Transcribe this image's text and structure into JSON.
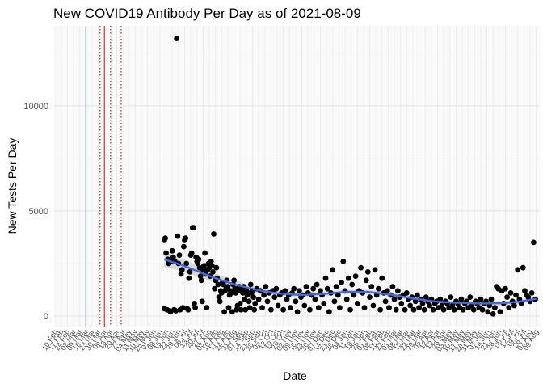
{
  "chart_data": {
    "type": "scatter",
    "title": "New COVID19 Antibody Per Day as of 2021-08-09",
    "xlabel": "Date",
    "ylabel": "New Tests Per Day",
    "ylim": [
      -500,
      13800
    ],
    "yticks": [
      0,
      5000,
      10000
    ],
    "xlim": [
      "2020-02-08",
      "2021-08-13"
    ],
    "x_tick_labels": [
      "10 Feb",
      "17 Feb",
      "24 Feb",
      "02 Mar",
      "09 Mar",
      "16 Mar",
      "23 Mar",
      "30 Mar",
      "06 Apr",
      "13 Apr",
      "20 Apr",
      "27 Apr",
      "04 May",
      "11 May",
      "18 May",
      "25 May",
      "01 Jun",
      "08 Jun",
      "15 Jun",
      "22 Jun",
      "29 Jun",
      "06 Jul",
      "13 Jul",
      "20 Jul",
      "27 Jul",
      "03 Aug",
      "10 Aug",
      "17 Aug",
      "24 Aug",
      "31 Aug",
      "07 Sep",
      "14 Sep",
      "21 Sep",
      "28 Sep",
      "05 Oct",
      "12 Oct",
      "19 Oct",
      "26 Oct",
      "02 Nov",
      "09 Nov",
      "16 Nov",
      "23 Nov",
      "30 Nov",
      "07 Dec",
      "14 Dec",
      "21 Dec",
      "28 Dec",
      "04 Jan",
      "11 Jan",
      "18 Jan",
      "25 Jan",
      "01 Feb",
      "08 Feb",
      "15 Feb",
      "22 Feb",
      "01 Mar",
      "08 Mar",
      "15 Mar",
      "22 Mar",
      "29 Mar",
      "05 Apr",
      "12 Apr",
      "19 Apr",
      "26 Apr",
      "03 May",
      "10 May",
      "17 May",
      "24 May",
      "31 May",
      "07 Jun",
      "14 Jun",
      "21 Jun",
      "28 Jun",
      "05 Jul",
      "12 Jul",
      "19 Jul",
      "26 Jul",
      "02 Aug",
      "09 Aug"
    ],
    "grid": true,
    "vlines": [
      {
        "date": "2020-03-16",
        "color": "#00008b",
        "style": "solid"
      },
      {
        "date": "2020-04-01",
        "color": "#8b0000",
        "style": "dotted"
      },
      {
        "date": "2020-04-06",
        "color": "#ff0000",
        "style": "solid"
      },
      {
        "date": "2020-04-13",
        "color": "#8b0000",
        "style": "dotted"
      },
      {
        "date": "2020-04-25",
        "color": "#8b0000",
        "style": "dotted"
      }
    ],
    "point_color": "#000000",
    "smooth_color": "#4169e1",
    "band_color": "#bfbfbf",
    "smooth": [
      {
        "x": "2020-06-13",
        "y": 2700
      },
      {
        "x": "2020-07-01",
        "y": 2450
      },
      {
        "x": "2020-07-20",
        "y": 2150
      },
      {
        "x": "2020-08-10",
        "y": 1800
      },
      {
        "x": "2020-09-01",
        "y": 1500
      },
      {
        "x": "2020-09-25",
        "y": 1250
      },
      {
        "x": "2020-10-20",
        "y": 1080
      },
      {
        "x": "2020-11-15",
        "y": 1000
      },
      {
        "x": "2020-12-10",
        "y": 1050
      },
      {
        "x": "2021-01-05",
        "y": 1150
      },
      {
        "x": "2021-01-30",
        "y": 1150
      },
      {
        "x": "2021-02-25",
        "y": 1020
      },
      {
        "x": "2021-03-20",
        "y": 850
      },
      {
        "x": "2021-04-15",
        "y": 700
      },
      {
        "x": "2021-05-10",
        "y": 630
      },
      {
        "x": "2021-06-05",
        "y": 600
      },
      {
        "x": "2021-07-01",
        "y": 610
      },
      {
        "x": "2021-07-20",
        "y": 680
      },
      {
        "x": "2021-08-09",
        "y": 820
      }
    ],
    "points": [
      {
        "x": "2020-06-13",
        "y": 3600
      },
      {
        "x": "2020-06-14",
        "y": 3700
      },
      {
        "x": "2020-06-15",
        "y": 3000
      },
      {
        "x": "2020-06-13",
        "y": 350
      },
      {
        "x": "2020-06-16",
        "y": 300
      },
      {
        "x": "2020-06-17",
        "y": 2700
      },
      {
        "x": "2020-06-18",
        "y": 2500
      },
      {
        "x": "2020-06-19",
        "y": 250
      },
      {
        "x": "2020-06-20",
        "y": 200
      },
      {
        "x": "2020-06-21",
        "y": 2600
      },
      {
        "x": "2020-06-22",
        "y": 3100
      },
      {
        "x": "2020-06-23",
        "y": 2800
      },
      {
        "x": "2020-06-24",
        "y": 300
      },
      {
        "x": "2020-06-25",
        "y": 2600
      },
      {
        "x": "2020-06-26",
        "y": 250
      },
      {
        "x": "2020-06-27",
        "y": 13200
      },
      {
        "x": "2020-06-28",
        "y": 3800
      },
      {
        "x": "2020-06-29",
        "y": 2500
      },
      {
        "x": "2020-06-30",
        "y": 2900
      },
      {
        "x": "2020-07-01",
        "y": 300
      },
      {
        "x": "2020-07-02",
        "y": 2000
      },
      {
        "x": "2020-07-03",
        "y": 2200
      },
      {
        "x": "2020-07-04",
        "y": 400
      },
      {
        "x": "2020-07-05",
        "y": 3300
      },
      {
        "x": "2020-07-06",
        "y": 3600
      },
      {
        "x": "2020-07-07",
        "y": 3700
      },
      {
        "x": "2020-07-08",
        "y": 2500
      },
      {
        "x": "2020-07-09",
        "y": 350
      },
      {
        "x": "2020-07-10",
        "y": 300
      },
      {
        "x": "2020-07-11",
        "y": 1800
      },
      {
        "x": "2020-07-12",
        "y": 2100
      },
      {
        "x": "2020-07-13",
        "y": 2900
      },
      {
        "x": "2020-07-14",
        "y": 3000
      },
      {
        "x": "2020-07-15",
        "y": 4200
      },
      {
        "x": "2020-07-16",
        "y": 4200
      },
      {
        "x": "2020-07-17",
        "y": 600
      },
      {
        "x": "2020-07-18",
        "y": 400
      },
      {
        "x": "2020-07-19",
        "y": 2800
      },
      {
        "x": "2020-07-20",
        "y": 2600
      },
      {
        "x": "2020-07-21",
        "y": 2500
      },
      {
        "x": "2020-07-22",
        "y": 2700
      },
      {
        "x": "2020-07-23",
        "y": 2300
      },
      {
        "x": "2020-07-24",
        "y": 1900
      },
      {
        "x": "2020-07-25",
        "y": 1700
      },
      {
        "x": "2020-07-26",
        "y": 700
      },
      {
        "x": "2020-07-27",
        "y": 2200
      },
      {
        "x": "2020-07-28",
        "y": 2400
      },
      {
        "x": "2020-07-29",
        "y": 3000
      },
      {
        "x": "2020-07-30",
        "y": 2000
      },
      {
        "x": "2020-07-31",
        "y": 400
      },
      {
        "x": "2020-08-01",
        "y": 2200
      },
      {
        "x": "2020-08-02",
        "y": 2500
      },
      {
        "x": "2020-08-03",
        "y": 2300
      },
      {
        "x": "2020-08-04",
        "y": 1900
      },
      {
        "x": "2020-08-05",
        "y": 2600
      },
      {
        "x": "2020-08-06",
        "y": 2400
      },
      {
        "x": "2020-08-07",
        "y": 2100
      },
      {
        "x": "2020-08-08",
        "y": 3900
      },
      {
        "x": "2020-08-09",
        "y": 1300
      },
      {
        "x": "2020-08-10",
        "y": 1700
      },
      {
        "x": "2020-08-11",
        "y": 2300
      },
      {
        "x": "2020-08-12",
        "y": 1800
      },
      {
        "x": "2020-08-13",
        "y": 1500
      },
      {
        "x": "2020-08-14",
        "y": 900
      },
      {
        "x": "2020-08-15",
        "y": 700
      },
      {
        "x": "2020-08-16",
        "y": 1200
      },
      {
        "x": "2020-08-17",
        "y": 1100
      },
      {
        "x": "2020-08-18",
        "y": 1600
      },
      {
        "x": "2020-08-19",
        "y": 1500
      },
      {
        "x": "2020-08-20",
        "y": 200
      },
      {
        "x": "2020-08-21",
        "y": 1200
      },
      {
        "x": "2020-08-22",
        "y": 1300
      },
      {
        "x": "2020-08-23",
        "y": 1700
      },
      {
        "x": "2020-08-24",
        "y": 1400
      },
      {
        "x": "2020-08-25",
        "y": 400
      },
      {
        "x": "2020-08-26",
        "y": 1000
      },
      {
        "x": "2020-08-27",
        "y": 1200
      },
      {
        "x": "2020-08-28",
        "y": 1100
      },
      {
        "x": "2020-08-29",
        "y": 200
      },
      {
        "x": "2020-08-30",
        "y": 1500
      },
      {
        "x": "2020-08-31",
        "y": 1700
      },
      {
        "x": "2020-09-01",
        "y": 1300
      },
      {
        "x": "2020-09-02",
        "y": 1100
      },
      {
        "x": "2020-09-03",
        "y": 300
      },
      {
        "x": "2020-09-04",
        "y": 500
      },
      {
        "x": "2020-09-05",
        "y": 1200
      },
      {
        "x": "2020-09-06",
        "y": 1400
      },
      {
        "x": "2020-09-07",
        "y": 600
      },
      {
        "x": "2020-09-08",
        "y": 300
      },
      {
        "x": "2020-09-09",
        "y": 1300
      },
      {
        "x": "2020-09-10",
        "y": 1100
      },
      {
        "x": "2020-09-11",
        "y": 1400
      },
      {
        "x": "2020-09-12",
        "y": 800
      },
      {
        "x": "2020-09-13",
        "y": 300
      },
      {
        "x": "2020-09-14",
        "y": 1200
      },
      {
        "x": "2020-09-15",
        "y": 1000
      },
      {
        "x": "2020-09-16",
        "y": 1100
      },
      {
        "x": "2020-09-17",
        "y": 700
      },
      {
        "x": "2020-09-18",
        "y": 400
      },
      {
        "x": "2020-09-19",
        "y": 1500
      },
      {
        "x": "2020-09-20",
        "y": 1100
      },
      {
        "x": "2020-09-21",
        "y": 1200
      },
      {
        "x": "2020-09-22",
        "y": 900
      },
      {
        "x": "2020-09-23",
        "y": 300
      },
      {
        "x": "2020-09-24",
        "y": 600
      },
      {
        "x": "2020-09-26",
        "y": 1300
      },
      {
        "x": "2020-09-28",
        "y": 800
      },
      {
        "x": "2020-09-30",
        "y": 1200
      },
      {
        "x": "2020-10-02",
        "y": 400
      },
      {
        "x": "2020-10-04",
        "y": 1000
      },
      {
        "x": "2020-10-06",
        "y": 1400
      },
      {
        "x": "2020-10-08",
        "y": 700
      },
      {
        "x": "2020-10-10",
        "y": 1100
      },
      {
        "x": "2020-10-12",
        "y": 300
      },
      {
        "x": "2020-10-14",
        "y": 1200
      },
      {
        "x": "2020-10-16",
        "y": 900
      },
      {
        "x": "2020-10-18",
        "y": 1300
      },
      {
        "x": "2020-10-20",
        "y": 500
      },
      {
        "x": "2020-10-22",
        "y": 1000
      },
      {
        "x": "2020-10-24",
        "y": 1100
      },
      {
        "x": "2020-10-26",
        "y": 300
      },
      {
        "x": "2020-10-28",
        "y": 1200
      },
      {
        "x": "2020-10-30",
        "y": 800
      },
      {
        "x": "2020-11-01",
        "y": 1000
      },
      {
        "x": "2020-11-03",
        "y": 400
      },
      {
        "x": "2020-11-05",
        "y": 1100
      },
      {
        "x": "2020-11-07",
        "y": 1300
      },
      {
        "x": "2020-11-09",
        "y": 700
      },
      {
        "x": "2020-11-11",
        "y": 200
      },
      {
        "x": "2020-11-13",
        "y": 1200
      },
      {
        "x": "2020-11-15",
        "y": 900
      },
      {
        "x": "2020-11-17",
        "y": 1000
      },
      {
        "x": "2020-11-19",
        "y": 500
      },
      {
        "x": "2020-11-21",
        "y": 1400
      },
      {
        "x": "2020-11-23",
        "y": 1100
      },
      {
        "x": "2020-11-25",
        "y": 300
      },
      {
        "x": "2020-11-27",
        "y": 1000
      },
      {
        "x": "2020-11-29",
        "y": 1300
      },
      {
        "x": "2020-12-01",
        "y": 800
      },
      {
        "x": "2020-12-03",
        "y": 1500
      },
      {
        "x": "2020-12-05",
        "y": 400
      },
      {
        "x": "2020-12-07",
        "y": 1200
      },
      {
        "x": "2020-12-09",
        "y": 1000
      },
      {
        "x": "2020-12-11",
        "y": 600
      },
      {
        "x": "2020-12-13",
        "y": 1800
      },
      {
        "x": "2020-12-15",
        "y": 1300
      },
      {
        "x": "2020-12-17",
        "y": 200
      },
      {
        "x": "2020-12-19",
        "y": 1100
      },
      {
        "x": "2020-12-21",
        "y": 2200
      },
      {
        "x": "2020-12-23",
        "y": 700
      },
      {
        "x": "2020-12-25",
        "y": 1400
      },
      {
        "x": "2020-12-27",
        "y": 1000
      },
      {
        "x": "2020-12-29",
        "y": 400
      },
      {
        "x": "2020-12-31",
        "y": 1600
      },
      {
        "x": "2021-01-02",
        "y": 2600
      },
      {
        "x": "2021-01-04",
        "y": 1200
      },
      {
        "x": "2021-01-06",
        "y": 800
      },
      {
        "x": "2021-01-08",
        "y": 1800
      },
      {
        "x": "2021-01-10",
        "y": 300
      },
      {
        "x": "2021-01-12",
        "y": 1500
      },
      {
        "x": "2021-01-14",
        "y": 1000
      },
      {
        "x": "2021-01-16",
        "y": 1900
      },
      {
        "x": "2021-01-18",
        "y": 600
      },
      {
        "x": "2021-01-20",
        "y": 1200
      },
      {
        "x": "2021-01-22",
        "y": 2300
      },
      {
        "x": "2021-01-24",
        "y": 1100
      },
      {
        "x": "2021-01-26",
        "y": 400
      },
      {
        "x": "2021-01-28",
        "y": 1700
      },
      {
        "x": "2021-01-30",
        "y": 2100
      },
      {
        "x": "2021-02-01",
        "y": 900
      },
      {
        "x": "2021-02-03",
        "y": 1400
      },
      {
        "x": "2021-02-05",
        "y": 500
      },
      {
        "x": "2021-02-07",
        "y": 2200
      },
      {
        "x": "2021-02-09",
        "y": 1000
      },
      {
        "x": "2021-02-11",
        "y": 1300
      },
      {
        "x": "2021-02-13",
        "y": 300
      },
      {
        "x": "2021-02-15",
        "y": 1800
      },
      {
        "x": "2021-02-17",
        "y": 1100
      },
      {
        "x": "2021-02-19",
        "y": 700
      },
      {
        "x": "2021-02-21",
        "y": 1200
      },
      {
        "x": "2021-02-23",
        "y": 400
      },
      {
        "x": "2021-02-25",
        "y": 1000
      },
      {
        "x": "2021-02-27",
        "y": 1400
      },
      {
        "x": "2021-03-01",
        "y": 800
      },
      {
        "x": "2021-03-03",
        "y": 300
      },
      {
        "x": "2021-03-05",
        "y": 1200
      },
      {
        "x": "2021-03-07",
        "y": 900
      },
      {
        "x": "2021-03-09",
        "y": 600
      },
      {
        "x": "2021-03-11",
        "y": 1000
      },
      {
        "x": "2021-03-13",
        "y": 300
      },
      {
        "x": "2021-03-15",
        "y": 1100
      },
      {
        "x": "2021-03-17",
        "y": 800
      },
      {
        "x": "2021-03-19",
        "y": 500
      },
      {
        "x": "2021-03-21",
        "y": 900
      },
      {
        "x": "2021-03-23",
        "y": 300
      },
      {
        "x": "2021-03-25",
        "y": 700
      },
      {
        "x": "2021-03-27",
        "y": 1000
      },
      {
        "x": "2021-03-29",
        "y": 400
      },
      {
        "x": "2021-03-31",
        "y": 800
      },
      {
        "x": "2021-04-02",
        "y": 600
      },
      {
        "x": "2021-04-04",
        "y": 300
      },
      {
        "x": "2021-04-06",
        "y": 900
      },
      {
        "x": "2021-04-08",
        "y": 700
      },
      {
        "x": "2021-04-10",
        "y": 500
      },
      {
        "x": "2021-04-12",
        "y": 800
      },
      {
        "x": "2021-04-14",
        "y": 300
      },
      {
        "x": "2021-04-16",
        "y": 600
      },
      {
        "x": "2021-04-18",
        "y": 700
      },
      {
        "x": "2021-04-20",
        "y": 400
      },
      {
        "x": "2021-04-22",
        "y": 800
      },
      {
        "x": "2021-04-24",
        "y": 500
      },
      {
        "x": "2021-04-26",
        "y": 300
      },
      {
        "x": "2021-04-28",
        "y": 700
      },
      {
        "x": "2021-04-30",
        "y": 600
      },
      {
        "x": "2021-05-02",
        "y": 400
      },
      {
        "x": "2021-05-04",
        "y": 900
      },
      {
        "x": "2021-05-06",
        "y": 500
      },
      {
        "x": "2021-05-08",
        "y": 300
      },
      {
        "x": "2021-05-10",
        "y": 700
      },
      {
        "x": "2021-05-12",
        "y": 600
      },
      {
        "x": "2021-05-14",
        "y": 400
      },
      {
        "x": "2021-05-16",
        "y": 800
      },
      {
        "x": "2021-05-18",
        "y": 300
      },
      {
        "x": "2021-05-20",
        "y": 600
      },
      {
        "x": "2021-05-22",
        "y": 700
      },
      {
        "x": "2021-05-24",
        "y": 400
      },
      {
        "x": "2021-05-26",
        "y": 900
      },
      {
        "x": "2021-05-28",
        "y": 500
      },
      {
        "x": "2021-05-30",
        "y": 300
      },
      {
        "x": "2021-06-01",
        "y": 700
      },
      {
        "x": "2021-06-03",
        "y": 600
      },
      {
        "x": "2021-06-05",
        "y": 400
      },
      {
        "x": "2021-06-07",
        "y": 800
      },
      {
        "x": "2021-06-09",
        "y": 300
      },
      {
        "x": "2021-06-11",
        "y": 600
      },
      {
        "x": "2021-06-13",
        "y": 700
      },
      {
        "x": "2021-06-15",
        "y": 200
      },
      {
        "x": "2021-06-17",
        "y": 500
      },
      {
        "x": "2021-06-19",
        "y": 800
      },
      {
        "x": "2021-06-21",
        "y": 100
      },
      {
        "x": "2021-06-23",
        "y": 400
      },
      {
        "x": "2021-06-25",
        "y": 1400
      },
      {
        "x": "2021-06-27",
        "y": 1300
      },
      {
        "x": "2021-06-29",
        "y": 200
      },
      {
        "x": "2021-07-01",
        "y": 1200
      },
      {
        "x": "2021-07-03",
        "y": 600
      },
      {
        "x": "2021-07-05",
        "y": 1300
      },
      {
        "x": "2021-07-07",
        "y": 900
      },
      {
        "x": "2021-07-09",
        "y": 400
      },
      {
        "x": "2021-07-11",
        "y": 1100
      },
      {
        "x": "2021-07-13",
        "y": 700
      },
      {
        "x": "2021-07-15",
        "y": 500
      },
      {
        "x": "2021-07-17",
        "y": 1000
      },
      {
        "x": "2021-07-19",
        "y": 2200
      },
      {
        "x": "2021-07-21",
        "y": 800
      },
      {
        "x": "2021-07-23",
        "y": 600
      },
      {
        "x": "2021-07-25",
        "y": 2300
      },
      {
        "x": "2021-07-27",
        "y": 1200
      },
      {
        "x": "2021-07-29",
        "y": 1000
      },
      {
        "x": "2021-07-31",
        "y": 900
      },
      {
        "x": "2021-08-02",
        "y": 700
      },
      {
        "x": "2021-08-04",
        "y": 1100
      },
      {
        "x": "2021-08-06",
        "y": 3500
      },
      {
        "x": "2021-08-08",
        "y": 800
      }
    ]
  }
}
